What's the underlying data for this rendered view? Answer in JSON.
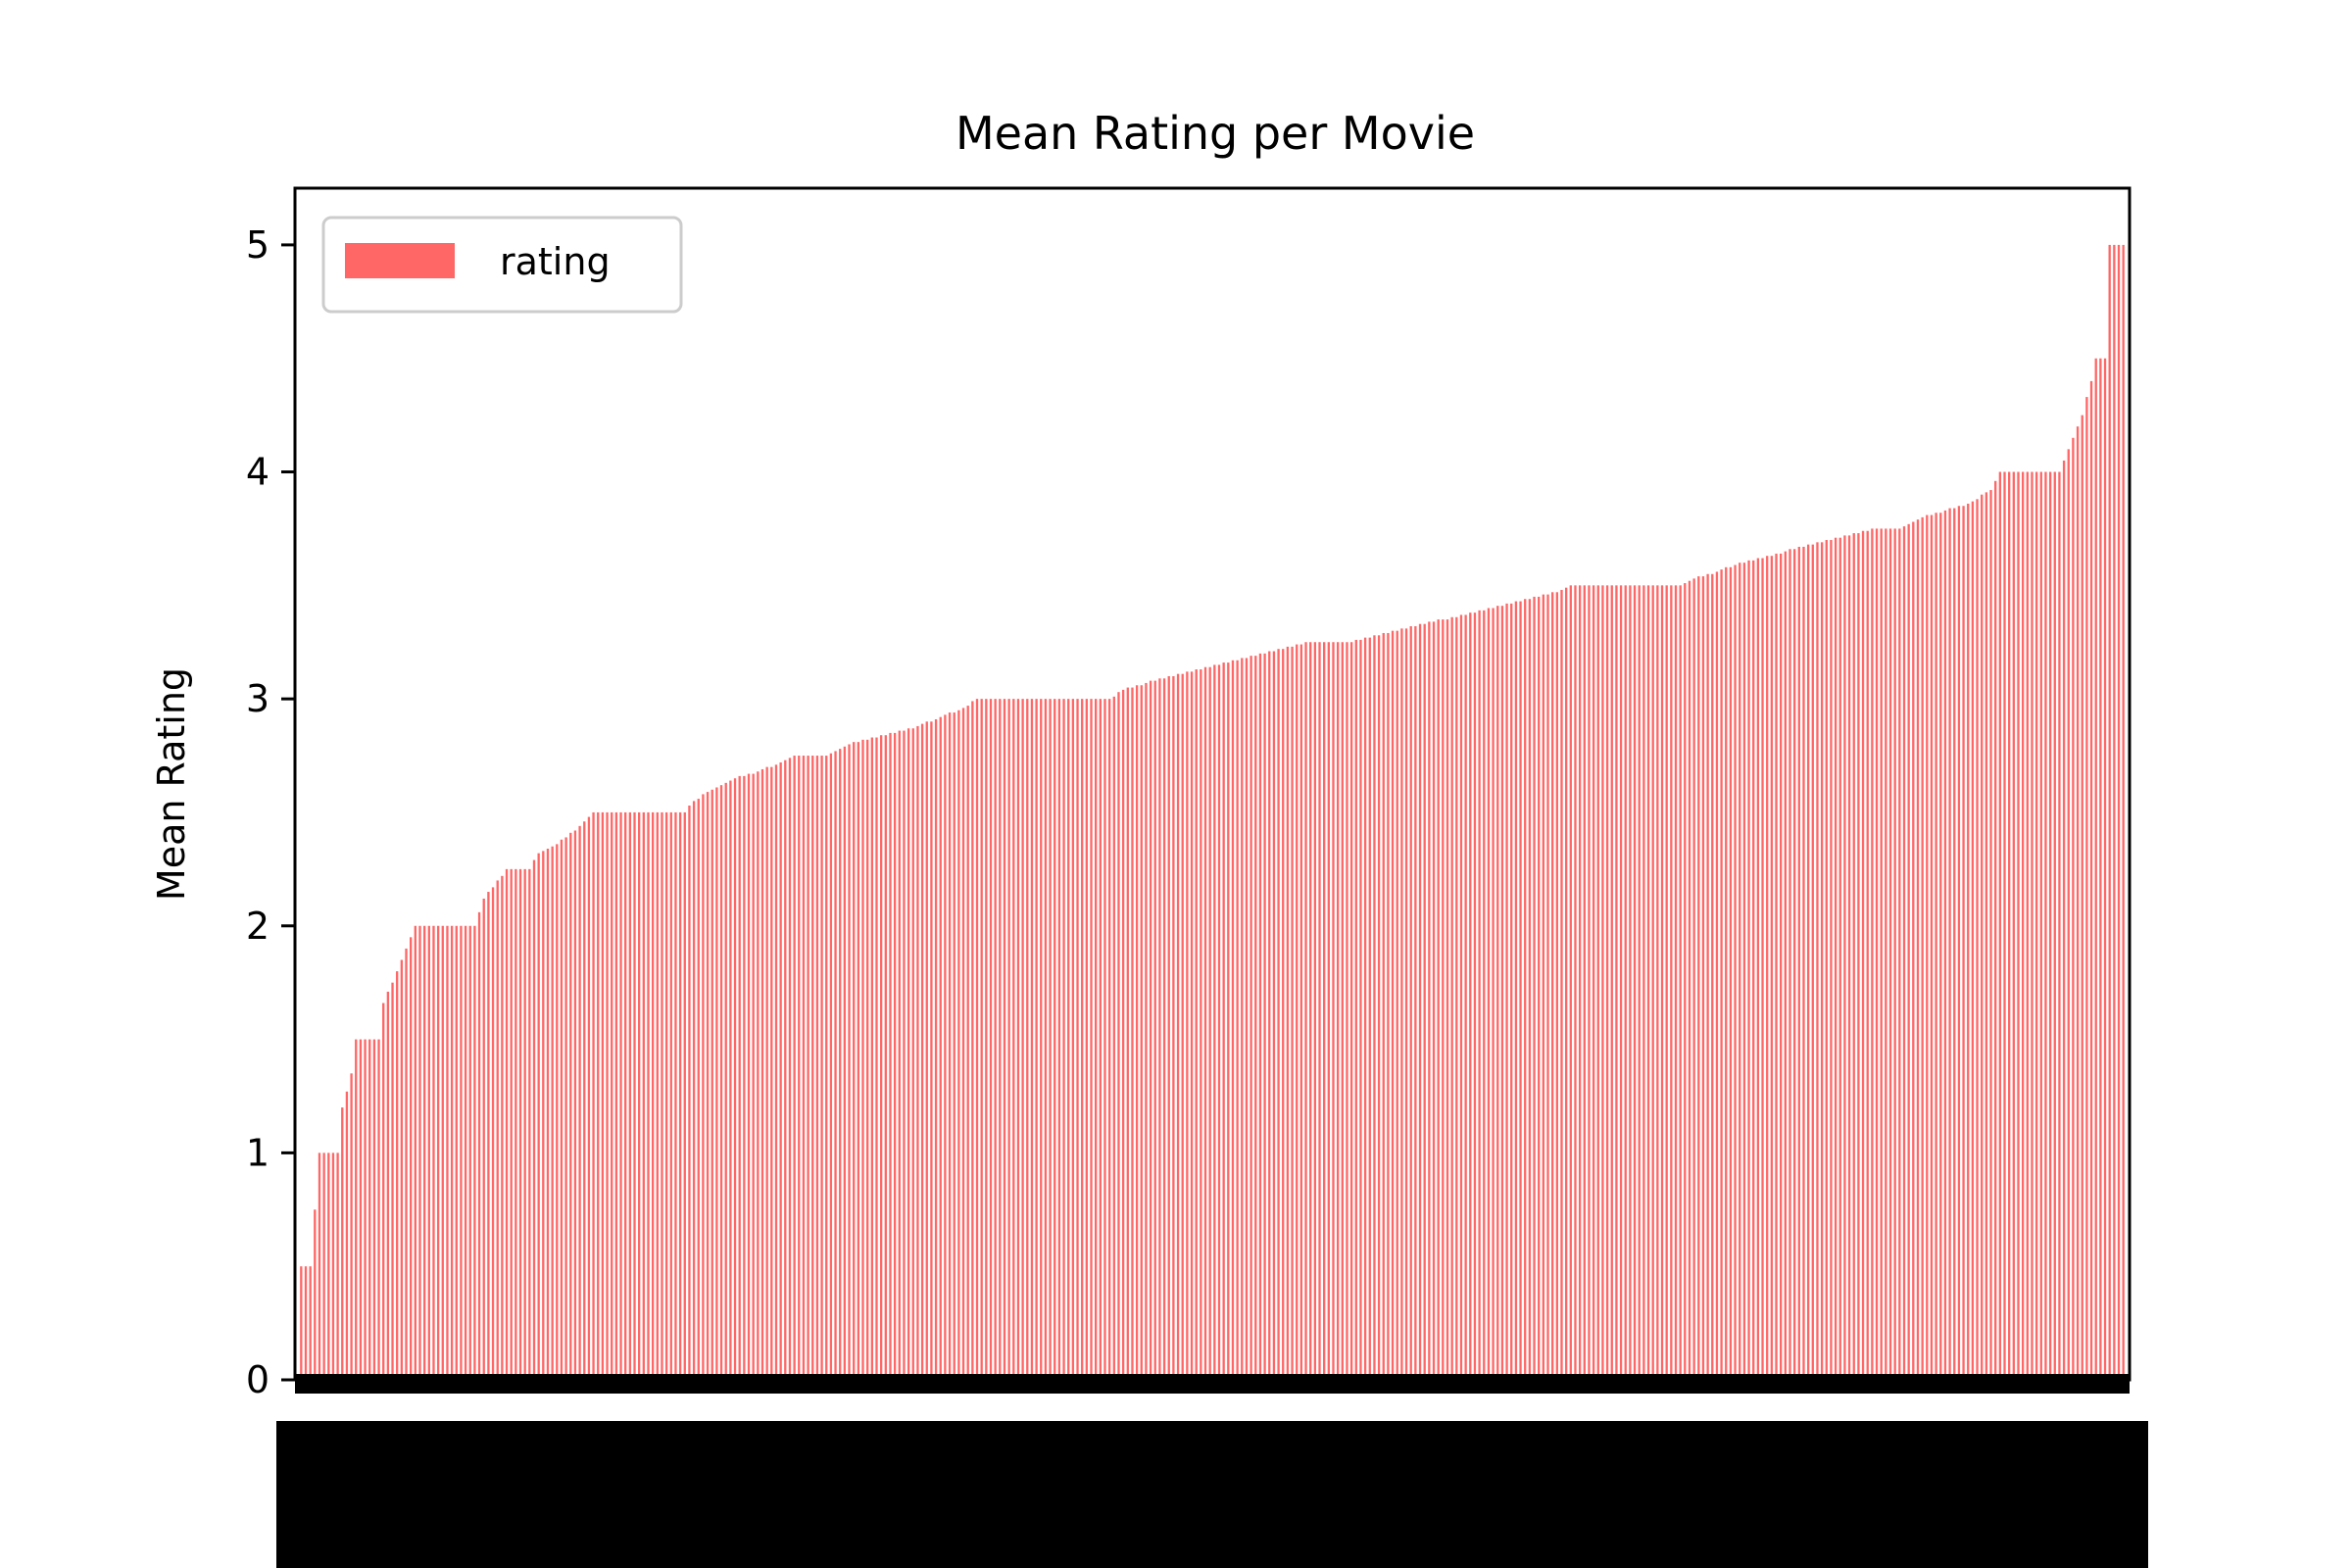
{
  "chart_data": {
    "type": "bar",
    "title": "Mean Rating per Movie",
    "xlabel": "",
    "ylabel": "Mean Rating",
    "ylim": [
      0,
      5.25
    ],
    "yticks": [
      "0",
      "1",
      "2",
      "3",
      "4",
      "5"
    ],
    "legend": {
      "placement": "upper-left",
      "entries": [
        "rating"
      ]
    },
    "grid": false,
    "bar_color": "#ff6666",
    "category_count": 400,
    "curve": [
      [
        0,
        0.5
      ],
      [
        2,
        0.5
      ],
      [
        3,
        0.75
      ],
      [
        4,
        1.0
      ],
      [
        8,
        1.0
      ],
      [
        9,
        1.2
      ],
      [
        11,
        1.35
      ],
      [
        12,
        1.5
      ],
      [
        17,
        1.5
      ],
      [
        18,
        1.66
      ],
      [
        20,
        1.75
      ],
      [
        22,
        1.85
      ],
      [
        25,
        2.0
      ],
      [
        38,
        2.0
      ],
      [
        40,
        2.12
      ],
      [
        42,
        2.17
      ],
      [
        45,
        2.25
      ],
      [
        50,
        2.25
      ],
      [
        52,
        2.32
      ],
      [
        55,
        2.35
      ],
      [
        60,
        2.42
      ],
      [
        64,
        2.5
      ],
      [
        84,
        2.5
      ],
      [
        86,
        2.55
      ],
      [
        90,
        2.6
      ],
      [
        95,
        2.65
      ],
      [
        100,
        2.68
      ],
      [
        105,
        2.72
      ],
      [
        108,
        2.75
      ],
      [
        115,
        2.75
      ],
      [
        120,
        2.8
      ],
      [
        125,
        2.83
      ],
      [
        130,
        2.85
      ],
      [
        135,
        2.88
      ],
      [
        140,
        2.92
      ],
      [
        145,
        2.96
      ],
      [
        148,
        3.0
      ],
      [
        177,
        3.0
      ],
      [
        180,
        3.04
      ],
      [
        185,
        3.07
      ],
      [
        190,
        3.1
      ],
      [
        195,
        3.12
      ],
      [
        200,
        3.15
      ],
      [
        205,
        3.17
      ],
      [
        210,
        3.2
      ],
      [
        215,
        3.22
      ],
      [
        220,
        3.25
      ],
      [
        230,
        3.25
      ],
      [
        235,
        3.28
      ],
      [
        240,
        3.3
      ],
      [
        245,
        3.33
      ],
      [
        250,
        3.35
      ],
      [
        255,
        3.37
      ],
      [
        260,
        3.4
      ],
      [
        265,
        3.42
      ],
      [
        270,
        3.45
      ],
      [
        275,
        3.47
      ],
      [
        278,
        3.5
      ],
      [
        302,
        3.5
      ],
      [
        305,
        3.53
      ],
      [
        310,
        3.56
      ],
      [
        315,
        3.6
      ],
      [
        320,
        3.62
      ],
      [
        325,
        3.65
      ],
      [
        330,
        3.68
      ],
      [
        335,
        3.7
      ],
      [
        340,
        3.73
      ],
      [
        345,
        3.75
      ],
      [
        350,
        3.75
      ],
      [
        355,
        3.8
      ],
      [
        360,
        3.83
      ],
      [
        365,
        3.86
      ],
      [
        370,
        3.92
      ],
      [
        372,
        4.0
      ],
      [
        385,
        4.0
      ],
      [
        386,
        4.05
      ],
      [
        388,
        4.15
      ],
      [
        390,
        4.25
      ],
      [
        392,
        4.4
      ],
      [
        393,
        4.5
      ],
      [
        395,
        4.5
      ],
      [
        396,
        5.0
      ],
      [
        399,
        5.0
      ]
    ]
  }
}
